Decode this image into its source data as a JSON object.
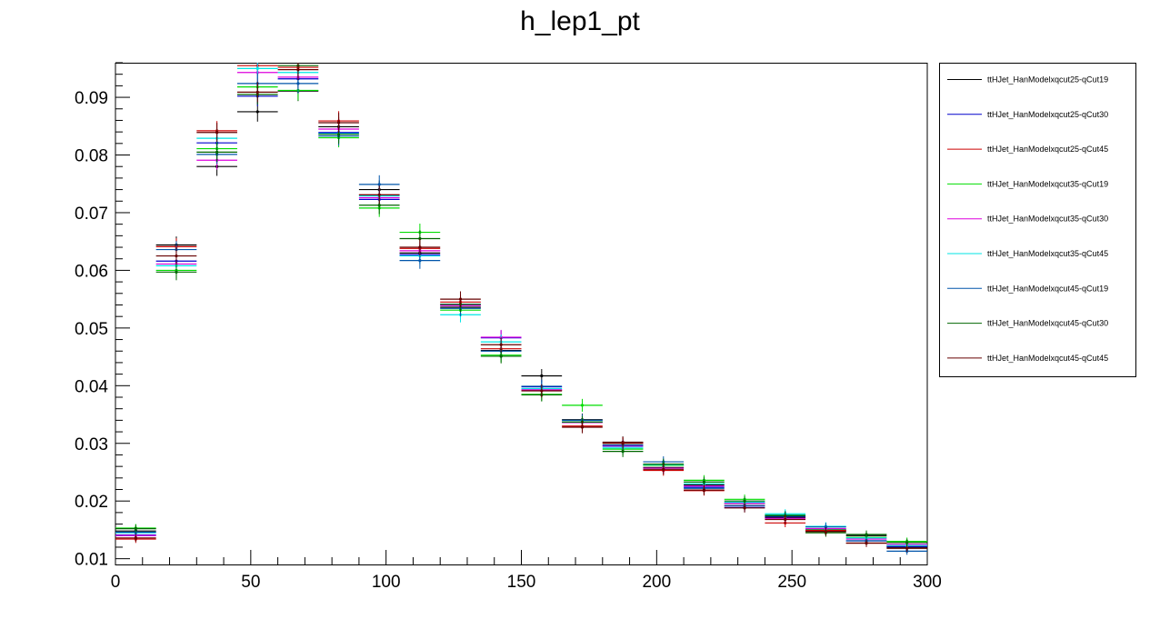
{
  "chart_data": {
    "type": "scatter",
    "title": "h_lep1_pt",
    "xlabel": "",
    "ylabel": "",
    "xlim": [
      0,
      300
    ],
    "ylim": [
      0.009,
      0.096
    ],
    "x_ticks": [
      "0",
      "50",
      "100",
      "150",
      "200",
      "250",
      "300"
    ],
    "x_tick_values": [
      0,
      50,
      100,
      150,
      200,
      250,
      300
    ],
    "y_ticks": [
      "0.01",
      "0.02",
      "0.03",
      "0.04",
      "0.05",
      "0.06",
      "0.07",
      "0.08",
      "0.09"
    ],
    "y_tick_values": [
      0.01,
      0.02,
      0.03,
      0.04,
      0.05,
      0.06,
      0.07,
      0.08,
      0.09
    ],
    "bin_width": 15,
    "x": [
      7.5,
      22.5,
      37.5,
      52.5,
      67.5,
      82.5,
      97.5,
      112.5,
      127.5,
      142.5,
      157.5,
      172.5,
      187.5,
      202.5,
      217.5,
      232.5,
      247.5,
      262.5,
      277.5,
      292.5
    ],
    "grid": false,
    "legend_position": "top-right",
    "series": [
      {
        "name": "ttHJet_HanModelxqcut25-qCut19",
        "color": "#000000",
        "values": [
          0.0148,
          0.0644,
          0.078,
          0.0875,
          0.0911,
          0.0849,
          0.074,
          0.063,
          0.0536,
          0.0461,
          0.0417,
          0.0341,
          0.0302,
          0.0258,
          0.0228,
          0.0196,
          0.0171,
          0.0148,
          0.014,
          0.012
        ]
      },
      {
        "name": "ttHJet_HanModelxqcut25-qCut30",
        "color": "#0000cc",
        "values": [
          0.0141,
          0.0616,
          0.0821,
          0.0902,
          0.0932,
          0.0839,
          0.0723,
          0.0627,
          0.0541,
          0.0483,
          0.0398,
          0.0337,
          0.0295,
          0.0262,
          0.0224,
          0.0189,
          0.0173,
          0.015,
          0.0131,
          0.0121
        ]
      },
      {
        "name": "ttHJet_HanModelxqcut25-qCut45",
        "color": "#cc0000",
        "values": [
          0.0134,
          0.0641,
          0.0842,
          0.0955,
          0.0952,
          0.0859,
          0.0731,
          0.0638,
          0.0545,
          0.0464,
          0.0392,
          0.033,
          0.0301,
          0.0253,
          0.0218,
          0.0192,
          0.0162,
          0.0149,
          0.0127,
          0.0123
        ]
      },
      {
        "name": "ttHJet_HanModelxqcut35-qCut19",
        "color": "#00dd00",
        "values": [
          0.0153,
          0.06,
          0.0811,
          0.0918,
          0.0912,
          0.083,
          0.0708,
          0.0666,
          0.0531,
          0.0453,
          0.0385,
          0.0366,
          0.029,
          0.0262,
          0.0236,
          0.0203,
          0.0176,
          0.0151,
          0.0137,
          0.013
        ]
      },
      {
        "name": "ttHJet_HanModelxqcut35-qCut30",
        "color": "#dd00dd",
        "values": [
          0.014,
          0.0611,
          0.0791,
          0.0943,
          0.0935,
          0.0845,
          0.0726,
          0.0634,
          0.0539,
          0.0484,
          0.0393,
          0.0336,
          0.0296,
          0.0257,
          0.0226,
          0.0196,
          0.017,
          0.0152,
          0.0134,
          0.0125
        ]
      },
      {
        "name": "ttHJet_HanModelxqcut35-qCut45",
        "color": "#00e6e6",
        "values": [
          0.0145,
          0.0608,
          0.0829,
          0.095,
          0.0943,
          0.0837,
          0.0729,
          0.0625,
          0.0523,
          0.0476,
          0.0395,
          0.0337,
          0.0292,
          0.0263,
          0.023,
          0.0198,
          0.0178,
          0.0156,
          0.0136,
          0.0123
        ]
      },
      {
        "name": "ttHJet_HanModelxqcut45-qCut19",
        "color": "#0055aa",
        "values": [
          0.0146,
          0.0636,
          0.0801,
          0.0924,
          0.0924,
          0.0833,
          0.0749,
          0.0617,
          0.0534,
          0.046,
          0.0399,
          0.034,
          0.0297,
          0.0268,
          0.0222,
          0.0192,
          0.0175,
          0.0155,
          0.0131,
          0.0113
        ]
      },
      {
        "name": "ttHJet_HanModelxqcut45-qCut30",
        "color": "#006600",
        "values": [
          0.0152,
          0.0597,
          0.0805,
          0.0905,
          0.0955,
          0.0836,
          0.0713,
          0.0655,
          0.0541,
          0.0451,
          0.0384,
          0.0337,
          0.0286,
          0.0264,
          0.0233,
          0.02,
          0.0174,
          0.0145,
          0.0142,
          0.0128
        ]
      },
      {
        "name": "ttHJet_HanModelxqcut45-qCut45",
        "color": "#660000",
        "values": [
          0.0136,
          0.0625,
          0.0839,
          0.0909,
          0.0948,
          0.0856,
          0.0731,
          0.064,
          0.055,
          0.0471,
          0.0391,
          0.0328,
          0.03,
          0.0255,
          0.0219,
          0.0188,
          0.0168,
          0.0147,
          0.0127,
          0.0118
        ]
      }
    ]
  }
}
